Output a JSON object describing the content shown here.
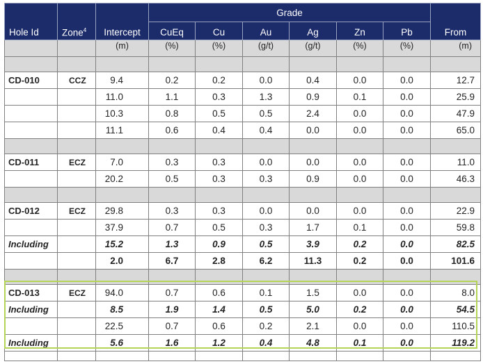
{
  "header": {
    "hole_id": "Hole Id",
    "zone": "Zone",
    "zone_sup": "4",
    "intercept": "Intercept",
    "grade": "Grade",
    "cueq": "CuEq",
    "cu": "Cu",
    "au": "Au",
    "ag": "Ag",
    "zn": "Zn",
    "pb": "Pb",
    "from": "From"
  },
  "units": {
    "intercept": "(m)",
    "cueq": "(%)",
    "cu": "(%)",
    "au": "(g/t)",
    "ag": "(g/t)",
    "zn": "(%)",
    "pb": "(%)",
    "from": "(m)"
  },
  "rows": [
    {
      "hole": "CD-010",
      "zone": "CCZ",
      "intercept": "9.4",
      "cueq": "0.2",
      "cu": "0.2",
      "au": "0.0",
      "ag": "0.4",
      "zn": "0.0",
      "pb": "0.0",
      "from": "12.7"
    },
    {
      "hole": "",
      "zone": "",
      "intercept": "11.0",
      "cueq": "1.1",
      "cu": "0.3",
      "au": "1.3",
      "ag": "0.9",
      "zn": "0.1",
      "pb": "0.0",
      "from": "25.9"
    },
    {
      "hole": "",
      "zone": "",
      "intercept": "10.3",
      "cueq": "0.8",
      "cu": "0.5",
      "au": "0.5",
      "ag": "2.4",
      "zn": "0.0",
      "pb": "0.0",
      "from": "47.9"
    },
    {
      "hole": "",
      "zone": "",
      "intercept": "11.1",
      "cueq": "0.6",
      "cu": "0.4",
      "au": "0.4",
      "ag": "0.0",
      "zn": "0.0",
      "pb": "0.0",
      "from": "65.0"
    },
    {
      "hole": "CD-011",
      "zone": "ECZ",
      "intercept": "7.0",
      "cueq": "0.3",
      "cu": "0.3",
      "au": "0.0",
      "ag": "0.0",
      "zn": "0.0",
      "pb": "0.0",
      "from": "11.0"
    },
    {
      "hole": "",
      "zone": "",
      "intercept": "20.2",
      "cueq": "0.5",
      "cu": "0.3",
      "au": "0.3",
      "ag": "0.9",
      "zn": "0.0",
      "pb": "0.0",
      "from": "46.3"
    },
    {
      "hole": "CD-012",
      "zone": "ECZ",
      "intercept": "29.8",
      "cueq": "0.3",
      "cu": "0.3",
      "au": "0.0",
      "ag": "0.0",
      "zn": "0.0",
      "pb": "0.0",
      "from": "22.9"
    },
    {
      "hole": "",
      "zone": "",
      "intercept": "37.9",
      "cueq": "0.7",
      "cu": "0.5",
      "au": "0.3",
      "ag": "1.7",
      "zn": "0.1",
      "pb": "0.0",
      "from": "59.8"
    },
    {
      "hole": "Including",
      "zone": "",
      "intercept": "15.2",
      "cueq": "1.3",
      "cu": "0.9",
      "au": "0.5",
      "ag": "3.9",
      "zn": "0.2",
      "pb": "0.0",
      "from": "82.5"
    },
    {
      "hole": "",
      "zone": "",
      "intercept": "2.0",
      "cueq": "6.7",
      "cu": "2.8",
      "au": "6.2",
      "ag": "11.3",
      "zn": "0.2",
      "pb": "0.0",
      "from": "101.6"
    },
    {
      "hole": "CD-013",
      "zone": "ECZ",
      "intercept": "94.0",
      "cueq": "0.7",
      "cu": "0.6",
      "au": "0.1",
      "ag": "1.5",
      "zn": "0.0",
      "pb": "0.0",
      "from": "8.0"
    },
    {
      "hole": "Including",
      "zone": "",
      "intercept": "8.5",
      "cueq": "1.9",
      "cu": "1.4",
      "au": "0.5",
      "ag": "5.0",
      "zn": "0.2",
      "pb": "0.0",
      "from": "54.5"
    },
    {
      "hole": "",
      "zone": "",
      "intercept": "22.5",
      "cueq": "0.7",
      "cu": "0.6",
      "au": "0.2",
      "ag": "2.1",
      "zn": "0.0",
      "pb": "0.0",
      "from": "110.5"
    },
    {
      "hole": "Including",
      "zone": "",
      "intercept": "5.6",
      "cueq": "1.6",
      "cu": "1.2",
      "au": "0.4",
      "ag": "4.8",
      "zn": "0.1",
      "pb": "0.0",
      "from": "119.2"
    }
  ],
  "colors": {
    "header_bg": "#1c2c6b",
    "separator_bg": "#d9d9d9",
    "highlight_border": "#b4d455"
  }
}
